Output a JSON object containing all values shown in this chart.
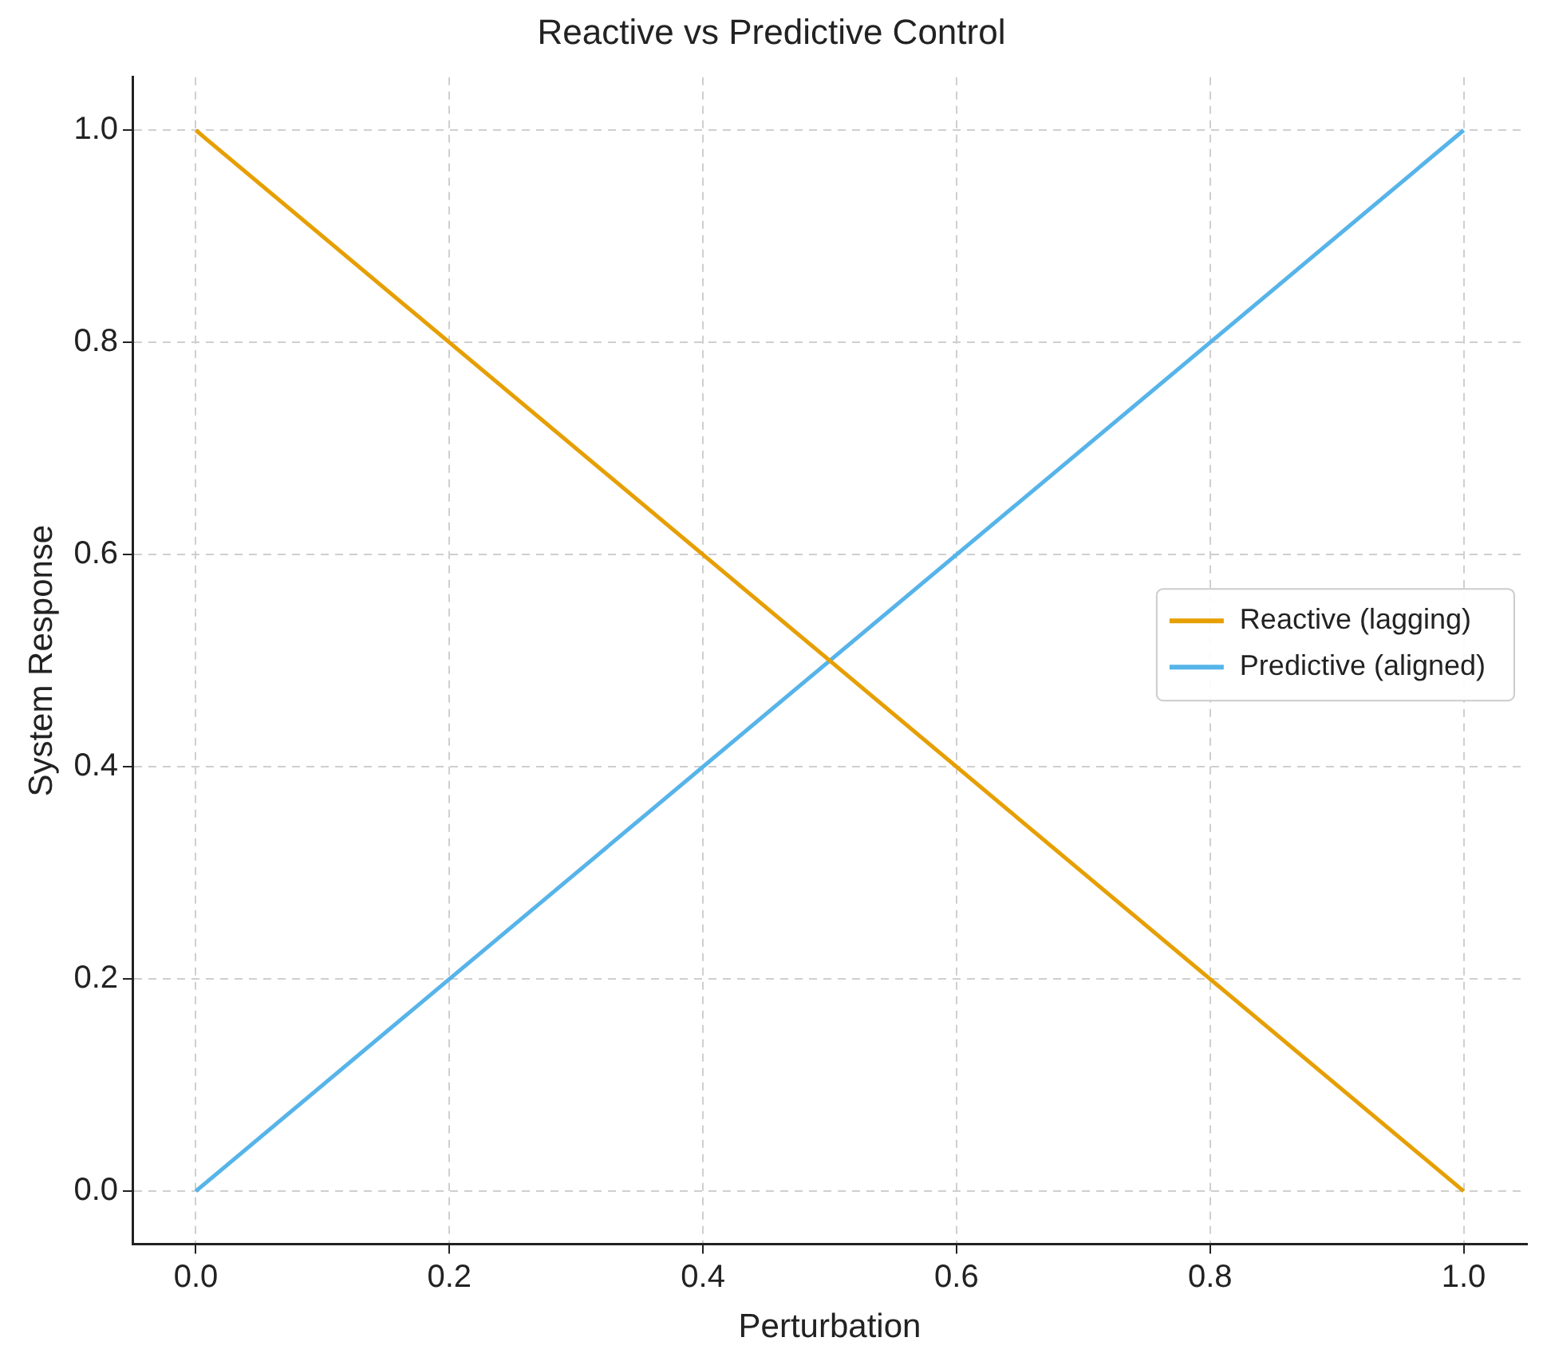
{
  "chart_data": {
    "type": "line",
    "title": "Reactive vs Predictive Control",
    "xlabel": "Perturbation",
    "ylabel": "System Response",
    "xlim": [
      -0.05,
      1.05
    ],
    "xticks": [
      {
        "value": 0,
        "label": "0.0"
      },
      {
        "value": 0.2,
        "label": "0.2"
      },
      {
        "value": 0.4,
        "label": "0.4"
      },
      {
        "value": 0.6,
        "label": "0.6"
      },
      {
        "value": 0.8,
        "label": "0.8"
      },
      {
        "value": 1,
        "label": "1.0"
      }
    ],
    "ylim": [
      -0.05,
      1.05
    ],
    "yticks": [
      {
        "value": 0,
        "label": "0.0"
      },
      {
        "value": 0.2,
        "label": "0.2"
      },
      {
        "value": 0.4,
        "label": "0.4"
      },
      {
        "value": 0.6,
        "label": "0.6"
      },
      {
        "value": 0.8,
        "label": "0.8"
      },
      {
        "value": 1,
        "label": "1.0"
      }
    ],
    "x": [
      0,
      1
    ],
    "series": [
      {
        "name": "Reactive (lagging)",
        "color": "#e69f00",
        "values": [
          1,
          0
        ]
      },
      {
        "name": "Predictive (aligned)",
        "color": "#56b4e9",
        "values": [
          0,
          1
        ]
      }
    ],
    "grid": true,
    "legend": "right",
    "marker": "none",
    "line_style": "solid"
  }
}
